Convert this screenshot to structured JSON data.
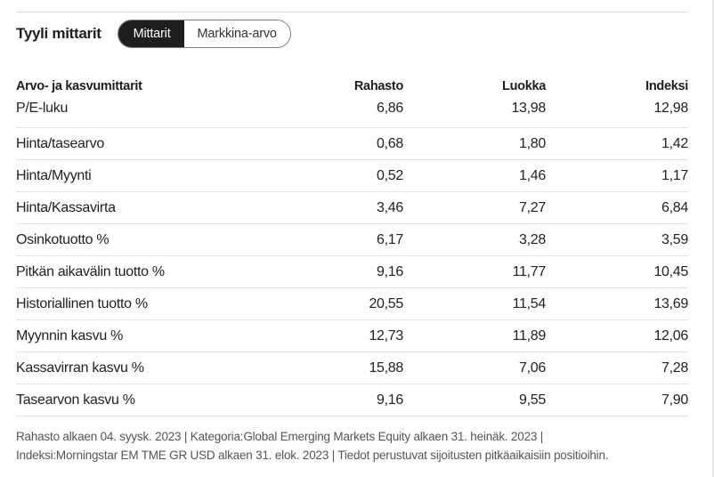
{
  "header": {
    "title": "Tyyli mittarit",
    "tabs": [
      {
        "label": "Mittarit",
        "active": true
      },
      {
        "label": "Markkina-arvo",
        "active": false
      }
    ]
  },
  "table": {
    "columns": [
      "Arvo- ja kasvumittarit",
      "Rahasto",
      "Luokka",
      "Indeksi"
    ],
    "rows": [
      [
        "P/E-luku",
        "6,86",
        "13,98",
        "12,98"
      ],
      [
        "Hinta/tasearvo",
        "0,68",
        "1,80",
        "1,42"
      ],
      [
        "Hinta/Myynti",
        "0,52",
        "1,46",
        "1,17"
      ],
      [
        "Hinta/Kassavirta",
        "3,46",
        "7,27",
        "6,84"
      ],
      [
        "Osinkotuotto %",
        "6,17",
        "3,28",
        "3,59"
      ],
      [
        "Pitkän aikavälin tuotto %",
        "9,16",
        "11,77",
        "10,45"
      ],
      [
        "Historiallinen tuotto %",
        "20,55",
        "11,54",
        "13,69"
      ],
      [
        "Myynnin kasvu %",
        "12,73",
        "11,89",
        "12,06"
      ],
      [
        "Kassavirran kasvu %",
        "15,88",
        "7,06",
        "7,28"
      ],
      [
        "Tasearvon kasvu %",
        "9,16",
        "9,55",
        "7,90"
      ]
    ]
  },
  "footnote": {
    "line1": "Rahasto alkaen 04. syysk. 2023 | Kategoria:Global Emerging Markets Equity alkaen 31. heinäk. 2023 |",
    "line2": "Indeksi:Morningstar EM TME GR USD alkaen 31. elok. 2023 | Tiedot perustuvat sijoitusten pitkäaikaisiin positioihin."
  },
  "colors": {
    "active_tab_bg": "#1e1e1e",
    "row_divider": "#e3e3e3",
    "footnote_text": "#555555"
  }
}
